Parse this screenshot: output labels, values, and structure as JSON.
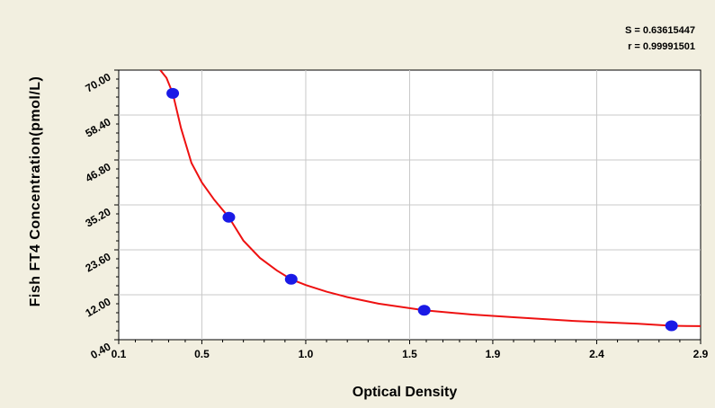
{
  "chart_data": {
    "type": "scatter",
    "xlabel": "Optical Density",
    "ylabel": "Fish FT4 Concentration(pmol/L)",
    "xlim": [
      0.1,
      2.9
    ],
    "ylim": [
      0.4,
      70.0
    ],
    "x_ticks": [
      "0.1",
      "0.5",
      "1.0",
      "1.5",
      "1.9",
      "2.4",
      "2.9"
    ],
    "x_tick_values": [
      0.1,
      0.5,
      1.0,
      1.5,
      1.9,
      2.4,
      2.9
    ],
    "y_ticks": [
      "0.40",
      "12.00",
      "23.60",
      "35.20",
      "46.80",
      "58.40",
      "70.00"
    ],
    "y_tick_values": [
      0.4,
      12.0,
      23.6,
      35.2,
      46.8,
      58.4,
      70.0
    ],
    "grid": true,
    "stats": {
      "s": "S = 0.63615447",
      "r": "r = 0.99991501"
    },
    "series": [
      {
        "points": [
          {
            "x": 0.36,
            "y": 64.0
          },
          {
            "x": 0.63,
            "y": 32.0
          },
          {
            "x": 0.93,
            "y": 16.0
          },
          {
            "x": 1.57,
            "y": 8.0
          },
          {
            "x": 2.76,
            "y": 4.0
          }
        ],
        "color": "#1a1ae6"
      }
    ],
    "fit_curve": {
      "color": "#ee1111",
      "points": [
        [
          0.3,
          70.0
        ],
        [
          0.33,
          68.0
        ],
        [
          0.36,
          64.0
        ],
        [
          0.4,
          55.0
        ],
        [
          0.45,
          46.0
        ],
        [
          0.5,
          41.0
        ],
        [
          0.56,
          36.5
        ],
        [
          0.63,
          32.0
        ],
        [
          0.7,
          26.0
        ],
        [
          0.78,
          21.5
        ],
        [
          0.86,
          18.3
        ],
        [
          0.93,
          16.0
        ],
        [
          1.0,
          14.5
        ],
        [
          1.1,
          12.8
        ],
        [
          1.2,
          11.4
        ],
        [
          1.35,
          9.7
        ],
        [
          1.57,
          8.0
        ],
        [
          1.8,
          6.9
        ],
        [
          2.0,
          6.2
        ],
        [
          2.3,
          5.2
        ],
        [
          2.6,
          4.5
        ],
        [
          2.76,
          4.0
        ],
        [
          2.9,
          3.9
        ]
      ]
    }
  }
}
